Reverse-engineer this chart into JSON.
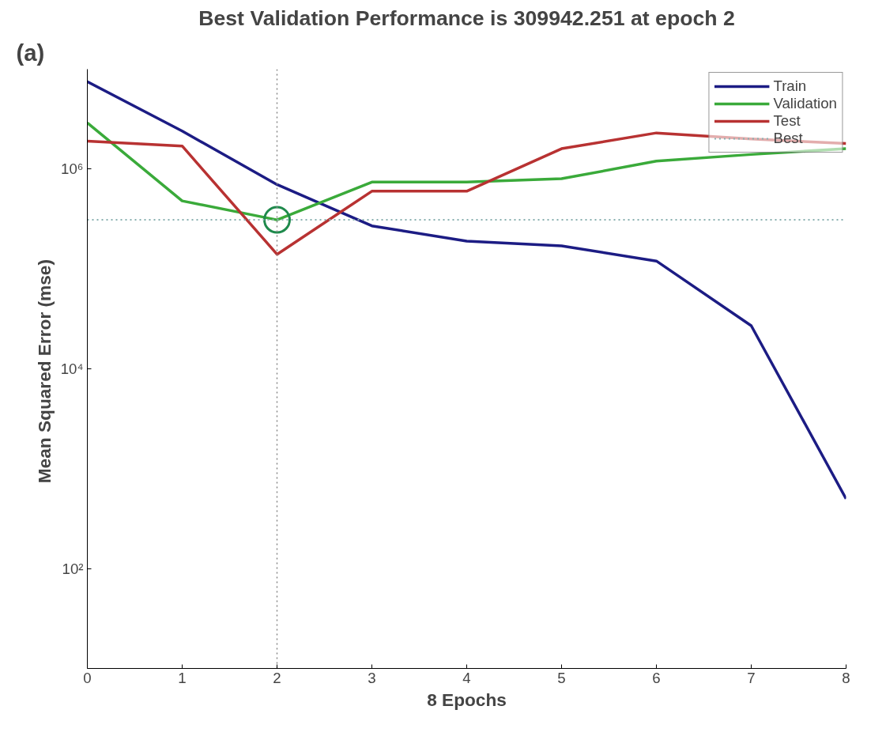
{
  "chart_data": {
    "type": "line",
    "title": "Best Validation Performance is 309942.251 at epoch 2",
    "xlabel": "8 Epochs",
    "ylabel": "Mean Squared Error  (mse)",
    "annotations": [
      "(a)"
    ],
    "x": [
      0,
      1,
      2,
      3,
      4,
      5,
      6,
      7,
      8
    ],
    "series": [
      {
        "name": "Train",
        "color": "#1c1c84",
        "values": [
          7500000,
          2400000,
          700000,
          270000,
          190000,
          170000,
          120000,
          27000,
          500
        ]
      },
      {
        "name": "Validation",
        "color": "#3aaa3a",
        "values": [
          2900000,
          480000,
          309942,
          740000,
          740000,
          800000,
          1200000,
          1400000,
          1600000
        ]
      },
      {
        "name": "Test",
        "color": "#b83232",
        "values": [
          1900000,
          1700000,
          140000,
          600000,
          600000,
          1600000,
          2300000,
          2000000,
          1800000
        ]
      },
      {
        "type": "scatter",
        "marker": "circle",
        "color": "#1f8a4c",
        "x": [
          2
        ],
        "values": [
          309942
        ]
      }
    ],
    "ref_lines": [
      {
        "axis": "x",
        "value": 2,
        "color": "#888888",
        "line_style": "dotted"
      },
      {
        "axis": "y",
        "value": 309942,
        "label": "Best",
        "color": "#88b0b0",
        "line_style": "dotted"
      }
    ],
    "log": "y",
    "xlim": [
      0,
      8
    ],
    "ylim": [
      10,
      10000000
    ],
    "xticks": [
      0,
      1,
      2,
      3,
      4,
      5,
      6,
      7,
      8
    ],
    "yticks": [
      {
        "value": 100,
        "label": "10²"
      },
      {
        "value": 10000,
        "label": "10⁴"
      },
      {
        "value": 1000000,
        "label": "10⁶"
      }
    ],
    "grid": false,
    "legend": "top right",
    "marker": "none",
    "line_style": "solid"
  }
}
